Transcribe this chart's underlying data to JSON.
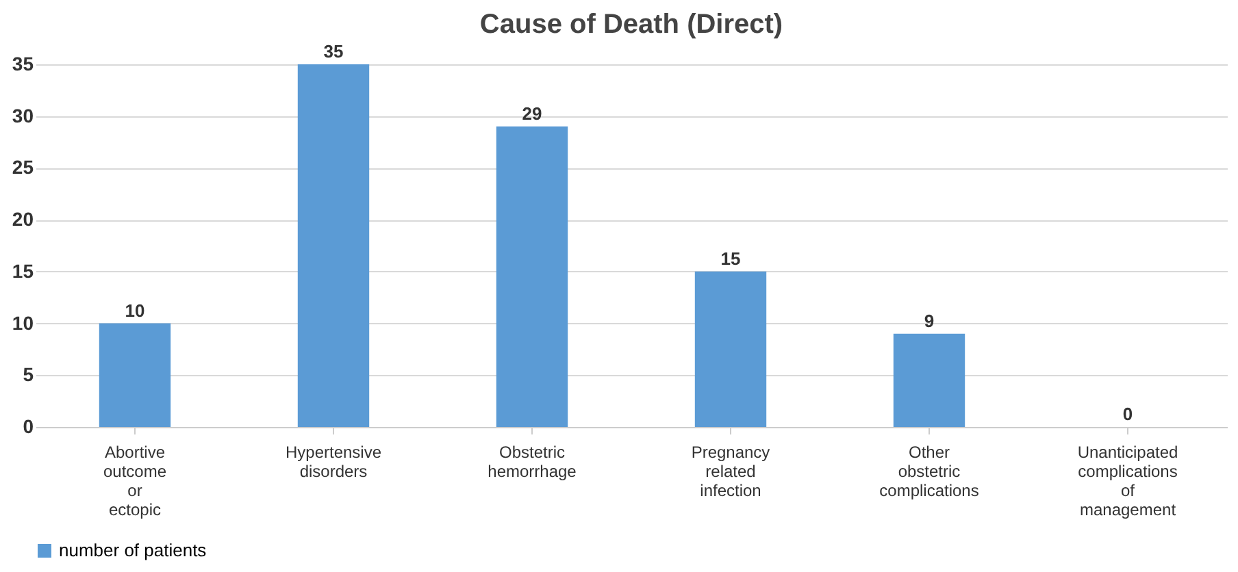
{
  "chart_data": {
    "type": "bar",
    "title": "Cause of Death (Direct)",
    "categories": [
      "Abortive outcome or ectopic",
      "Hypertensive disorders",
      "Obstetric hemorrhage",
      "Pregnancy related infection",
      "Other obstetric complications",
      "Unanticipated complications of management"
    ],
    "series": [
      {
        "name": "number of patients",
        "color": "#5b9bd5",
        "values": [
          10,
          35,
          29,
          15,
          9,
          0
        ]
      }
    ],
    "ylim": [
      0,
      35
    ],
    "yticks": [
      0,
      5,
      10,
      15,
      20,
      25,
      30,
      35
    ],
    "grid": "y",
    "legend": "bottom left",
    "data_labels": true
  }
}
